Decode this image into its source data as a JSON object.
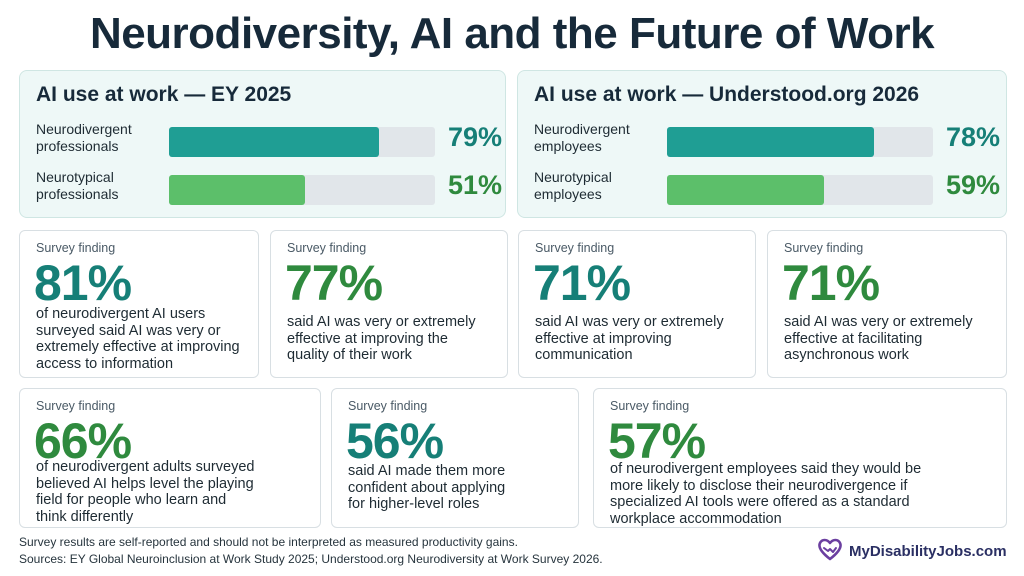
{
  "title": "Neurodiversity, AI and the Future of Work",
  "colors": {
    "teal": "#1f9e94",
    "green": "#5cbf6a",
    "teal_text": "#167f77",
    "green_text": "#2f8a3e",
    "track": "#e1e6ea",
    "brand": "#6b3fa0"
  },
  "chart_data": [
    {
      "type": "bar",
      "title": "AI use at work — EY 2025",
      "categories": [
        "Neurodivergent professionals",
        "Neurotypical professionals"
      ],
      "category_lines": [
        [
          "Neurodivergent",
          "professionals"
        ],
        [
          "Neurotypical",
          "professionals"
        ]
      ],
      "values": [
        79,
        51
      ],
      "value_labels": [
        "79%",
        "51%"
      ],
      "ylim": [
        0,
        100
      ]
    },
    {
      "type": "bar",
      "title": "AI use at work — Understood.org 2026",
      "categories": [
        "Neurodivergent employees",
        "Neurotypical employees"
      ],
      "category_lines": [
        [
          "Neurodivergent",
          "employees"
        ],
        [
          "Neurotypical",
          "employees"
        ]
      ],
      "values": [
        78,
        59
      ],
      "value_labels": [
        "78%",
        "59%"
      ],
      "ylim": [
        0,
        100
      ]
    }
  ],
  "findings": [
    {
      "label": "Survey finding",
      "value": "81%",
      "color": "teal",
      "lines": [
        "of neurodivergent AI users",
        "surveyed said AI was very or",
        "extremely effective at improving",
        "access to information"
      ]
    },
    {
      "label": "Survey finding",
      "value": "77%",
      "color": "green",
      "lines": [
        "said AI was very or extremely",
        "effective at improving the",
        "quality of their work"
      ]
    },
    {
      "label": "Survey finding",
      "value": "71%",
      "color": "teal",
      "lines": [
        "said AI was very or extremely",
        "effective at improving",
        "communication"
      ]
    },
    {
      "label": "Survey finding",
      "value": "71%",
      "color": "green",
      "lines": [
        "said AI was very or extremely",
        "effective at facilitating",
        "asynchronous work"
      ]
    },
    {
      "label": "Survey finding",
      "value": "66%",
      "color": "green",
      "lines": [
        "of neurodivergent adults surveyed",
        "believed AI helps level the playing",
        "field for people who learn and",
        "think differently"
      ]
    },
    {
      "label": "Survey finding",
      "value": "56%",
      "color": "teal",
      "lines": [
        "said AI made them more",
        "confident about applying",
        "for higher-level roles"
      ]
    },
    {
      "label": "Survey finding",
      "value": "57%",
      "color": "green",
      "lines": [
        "of neurodivergent employees said they would be",
        "more likely to disclose their neurodivergence if",
        "specialized AI tools were offered as a standard",
        "workplace accommodation"
      ]
    }
  ],
  "footnotes": {
    "disclaimer": "Survey results are self-reported and should not be interpreted as measured productivity gains.",
    "sources": "Sources: EY Global Neuroinclusion at Work Study 2025; Understood.org Neurodiversity at Work Survey 2026."
  },
  "brand": {
    "name": "MyDisabilityJobs.com",
    "icon": "heart-hands-icon"
  }
}
